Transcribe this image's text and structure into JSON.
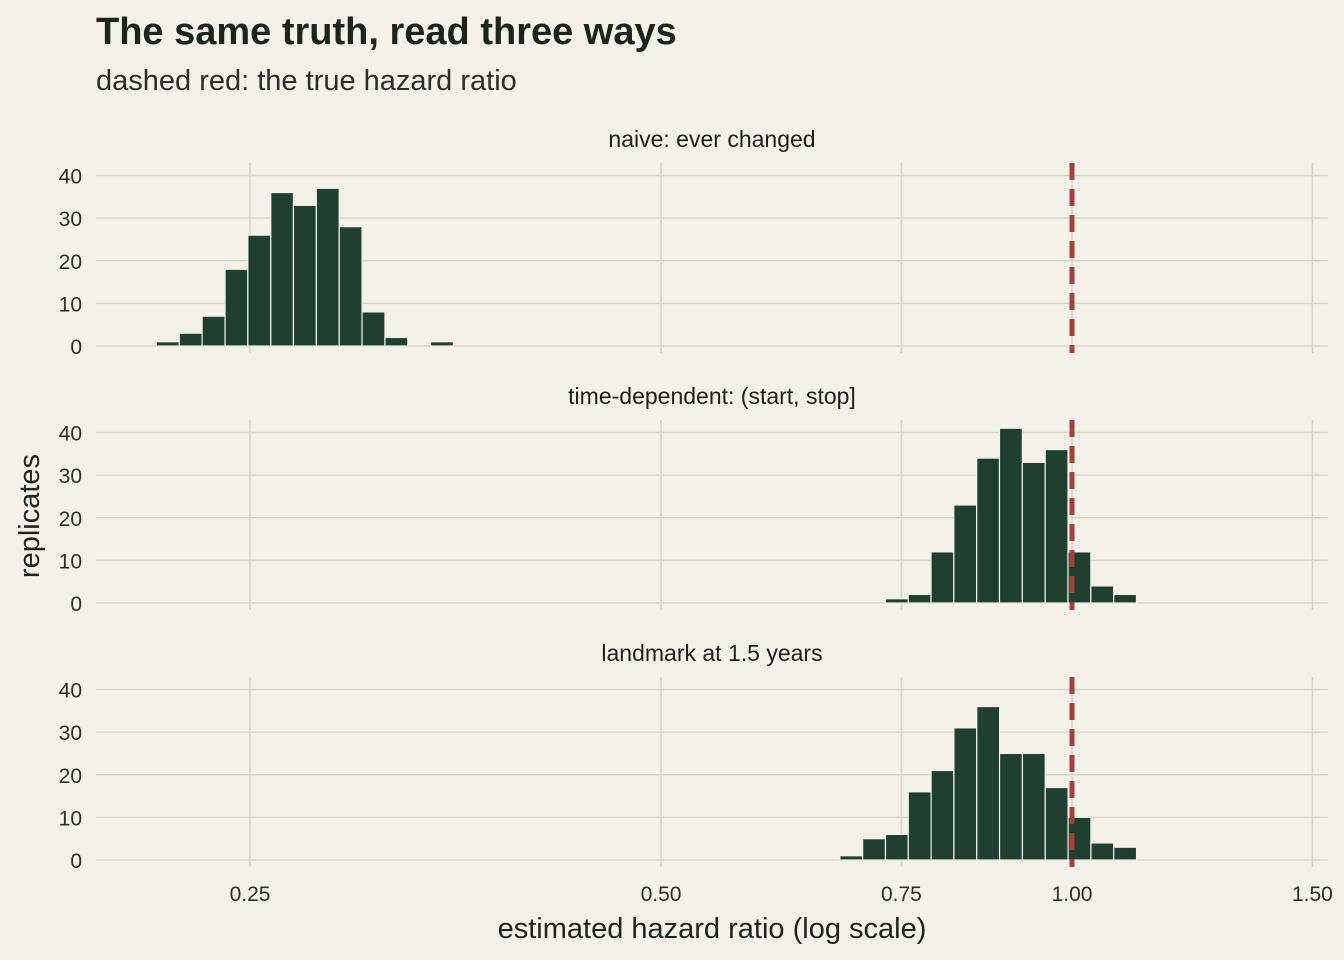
{
  "chart_data": {
    "type": "histogram",
    "title": "The same truth, read three ways",
    "subtitle": "dashed red: the true hazard ratio",
    "xlabel": "estimated hazard ratio (log scale)",
    "ylabel": "replicates",
    "x_scale": "log",
    "xlim": [
      0.2,
      1.52
    ],
    "x_ticks": [
      0.25,
      0.5,
      0.75,
      1.0,
      1.5
    ],
    "x_tick_labels": [
      "0.25",
      "0.50",
      "0.75",
      "1.00",
      "1.50"
    ],
    "ylim": [
      0,
      43
    ],
    "y_ticks": [
      0,
      10,
      20,
      30,
      40
    ],
    "reference_line": {
      "x": 1.0,
      "color": "#a3413c",
      "style": "dashed"
    },
    "bar_color": "#1f4030",
    "grid": true,
    "bin_width_log": 0.0385,
    "panels": [
      {
        "name": "naive: ever changed",
        "bins": [
          {
            "x0": 0.2135,
            "x1": 0.2219,
            "count": 1
          },
          {
            "x0": 0.2219,
            "x1": 0.2306,
            "count": 3
          },
          {
            "x0": 0.2306,
            "x1": 0.2397,
            "count": 7
          },
          {
            "x0": 0.2397,
            "x1": 0.2491,
            "count": 18
          },
          {
            "x0": 0.2491,
            "x1": 0.2589,
            "count": 26
          },
          {
            "x0": 0.2589,
            "x1": 0.269,
            "count": 36
          },
          {
            "x0": 0.269,
            "x1": 0.2796,
            "count": 33
          },
          {
            "x0": 0.2796,
            "x1": 0.2906,
            "count": 37
          },
          {
            "x0": 0.2906,
            "x1": 0.302,
            "count": 28
          },
          {
            "x0": 0.302,
            "x1": 0.3139,
            "count": 8
          },
          {
            "x0": 0.3139,
            "x1": 0.3262,
            "count": 2
          },
          {
            "x0": 0.3262,
            "x1": 0.339,
            "count": 0
          },
          {
            "x0": 0.339,
            "x1": 0.3523,
            "count": 1
          }
        ]
      },
      {
        "name": "time-dependent: (start, stop]",
        "bins": [
          {
            "x0": 0.73,
            "x1": 0.7586,
            "count": 1
          },
          {
            "x0": 0.7586,
            "x1": 0.7884,
            "count": 2
          },
          {
            "x0": 0.7884,
            "x1": 0.8193,
            "count": 12
          },
          {
            "x0": 0.8193,
            "x1": 0.8515,
            "count": 23
          },
          {
            "x0": 0.8515,
            "x1": 0.8849,
            "count": 34
          },
          {
            "x0": 0.8849,
            "x1": 0.9197,
            "count": 41
          },
          {
            "x0": 0.9197,
            "x1": 0.9558,
            "count": 33
          },
          {
            "x0": 0.9558,
            "x1": 0.9933,
            "count": 36
          },
          {
            "x0": 0.9933,
            "x1": 1.0323,
            "count": 12
          },
          {
            "x0": 1.0323,
            "x1": 1.0728,
            "count": 4
          },
          {
            "x0": 1.0728,
            "x1": 1.1149,
            "count": 2
          }
        ]
      },
      {
        "name": "landmark at 1.5 years",
        "bins": [
          {
            "x0": 0.676,
            "x1": 0.7025,
            "count": 1
          },
          {
            "x0": 0.7025,
            "x1": 0.7301,
            "count": 5
          },
          {
            "x0": 0.7301,
            "x1": 0.7587,
            "count": 6
          },
          {
            "x0": 0.7587,
            "x1": 0.7885,
            "count": 16
          },
          {
            "x0": 0.7885,
            "x1": 0.8194,
            "count": 21
          },
          {
            "x0": 0.8194,
            "x1": 0.8516,
            "count": 31
          },
          {
            "x0": 0.8516,
            "x1": 0.885,
            "count": 36
          },
          {
            "x0": 0.885,
            "x1": 0.9198,
            "count": 25
          },
          {
            "x0": 0.9198,
            "x1": 0.9559,
            "count": 25
          },
          {
            "x0": 0.9559,
            "x1": 0.9934,
            "count": 17
          },
          {
            "x0": 0.9934,
            "x1": 1.0324,
            "count": 10
          },
          {
            "x0": 1.0324,
            "x1": 1.0729,
            "count": 4
          },
          {
            "x0": 1.0729,
            "x1": 1.115,
            "count": 3
          }
        ]
      }
    ]
  }
}
